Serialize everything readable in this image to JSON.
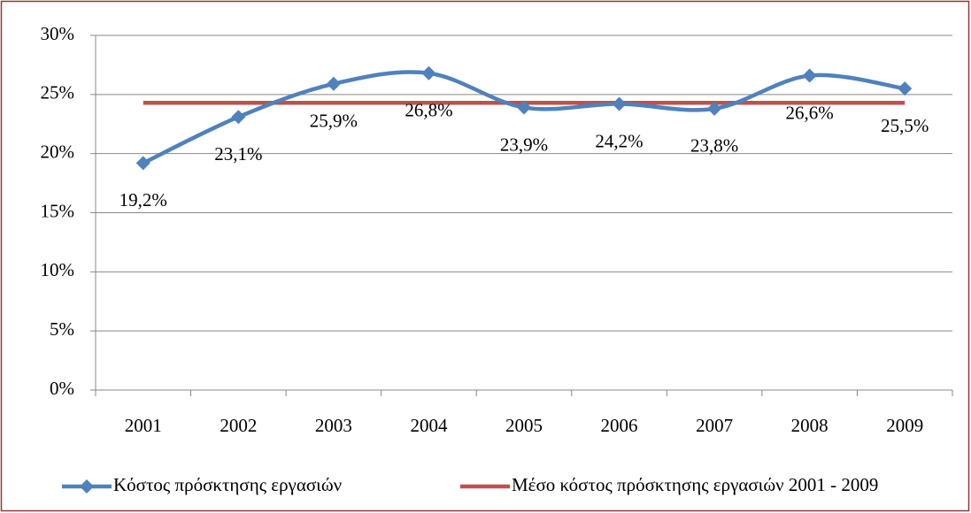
{
  "chart_data": {
    "type": "line",
    "categories": [
      "2001",
      "2002",
      "2003",
      "2004",
      "2005",
      "2006",
      "2007",
      "2008",
      "2009"
    ],
    "series": [
      {
        "name": "Κόστος πρόσκτησης εργασιών",
        "color": "#4f81bd",
        "smooth": true,
        "marker": "diamond",
        "values": [
          19.2,
          23.1,
          25.9,
          26.8,
          23.9,
          24.2,
          23.8,
          26.6,
          25.5
        ],
        "value_labels": [
          "19,2%",
          "23,1%",
          "25,9%",
          "26,8%",
          "23,9%",
          "24,2%",
          "23,8%",
          "26,6%",
          "25,5%"
        ]
      },
      {
        "name": "Μέσο κόστος πρόσκτησης εργασιών 2001 - 2009",
        "color": "#c0504d",
        "values": [
          24.3,
          24.3,
          24.3,
          24.3,
          24.3,
          24.3,
          24.3,
          24.3,
          24.3
        ]
      }
    ],
    "ylim": [
      0,
      30
    ],
    "yticks": [
      {
        "value": 0,
        "label": "0%"
      },
      {
        "value": 5,
        "label": "5%"
      },
      {
        "value": 10,
        "label": "10%"
      },
      {
        "value": 15,
        "label": "15%"
      },
      {
        "value": 20,
        "label": "20%"
      },
      {
        "value": 25,
        "label": "25%"
      },
      {
        "value": 30,
        "label": "30%"
      }
    ],
    "grid": true,
    "legend": "bottom"
  }
}
